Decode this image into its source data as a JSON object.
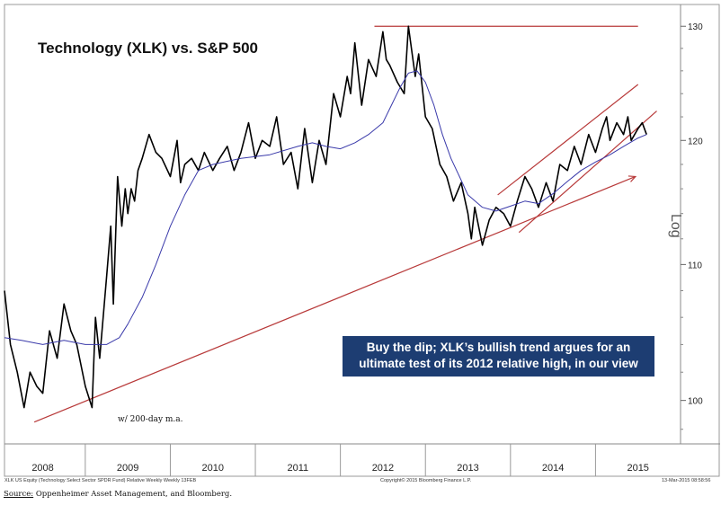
{
  "chart_data": {
    "type": "line",
    "title": "Technology (XLK) vs. S&P 500",
    "y_scale": "log",
    "y_axis_label": "Log",
    "ylim": [
      97,
      132
    ],
    "yticks": [
      100,
      110,
      120,
      130
    ],
    "x_range": [
      2007.55,
      2015.5
    ],
    "x_tick_labels": [
      "2008",
      "2009",
      "2010",
      "2011",
      "2012",
      "2013",
      "2014",
      "2015"
    ],
    "series": [
      {
        "name": "",
        "style": "black",
        "x": [
          2007.55,
          2007.62,
          2007.7,
          2007.78,
          2007.85,
          2007.93,
          2008.0,
          2008.08,
          2008.17,
          2008.25,
          2008.33,
          2008.4,
          2008.5,
          2008.58,
          2008.62,
          2008.67,
          2008.75,
          2008.8,
          2008.83,
          2008.88,
          2008.93,
          2008.97,
          2009.0,
          2009.04,
          2009.08,
          2009.12,
          2009.17,
          2009.25,
          2009.33,
          2009.4,
          2009.5,
          2009.58,
          2009.62,
          2009.67,
          2009.75,
          2009.83,
          2009.9,
          2010.0,
          2010.08,
          2010.17,
          2010.25,
          2010.33,
          2010.42,
          2010.5,
          2010.58,
          2010.67,
          2010.75,
          2010.83,
          2010.92,
          2011.0,
          2011.08,
          2011.17,
          2011.25,
          2011.33,
          2011.42,
          2011.5,
          2011.58,
          2011.62,
          2011.67,
          2011.75,
          2011.83,
          2011.92,
          2012.0,
          2012.04,
          2012.08,
          2012.17,
          2012.25,
          2012.3,
          2012.38,
          2012.42,
          2012.5,
          2012.58,
          2012.67,
          2012.75,
          2012.83,
          2012.92,
          2013.0,
          2013.04,
          2013.08,
          2013.17,
          2013.25,
          2013.33,
          2013.42,
          2013.5,
          2013.58,
          2013.67,
          2013.75,
          2013.83,
          2013.92,
          2014.0,
          2014.08,
          2014.17,
          2014.25,
          2014.33,
          2014.42,
          2014.5,
          2014.58,
          2014.63,
          2014.67,
          2014.75,
          2014.83,
          2014.88,
          2014.92,
          2015.0,
          2015.05,
          2015.1
        ],
        "values": [
          108,
          104,
          102,
          99.5,
          102,
          101,
          100.5,
          105,
          103,
          107,
          105,
          104,
          101,
          99.5,
          106,
          103,
          109,
          113,
          107,
          117,
          113,
          116,
          114,
          116,
          115,
          117.5,
          118.5,
          120.5,
          119,
          118.5,
          117,
          120,
          116.5,
          118,
          118.5,
          117.5,
          119,
          117.5,
          118.5,
          119.5,
          117.5,
          119,
          121.5,
          118.5,
          120,
          119.5,
          122,
          118,
          119,
          116,
          121,
          116.5,
          120,
          118,
          124,
          122,
          125.5,
          124,
          128.5,
          123,
          127,
          125.5,
          129.5,
          127,
          126.5,
          125,
          124,
          130,
          125.5,
          127.5,
          122,
          121,
          118,
          117,
          115,
          116.5,
          114,
          112,
          114.5,
          111.5,
          113.5,
          114.5,
          114,
          113,
          115,
          117,
          116,
          114.5,
          116.5,
          115,
          118,
          117.5,
          119.5,
          118,
          120.5,
          119,
          121,
          122,
          120,
          121.5,
          120.5,
          122,
          120,
          121,
          121.5,
          120.5
        ]
      },
      {
        "name": "",
        "style": "blue",
        "x": [
          2007.55,
          2007.75,
          2008.0,
          2008.25,
          2008.5,
          2008.75,
          2008.9,
          2009.0,
          2009.17,
          2009.33,
          2009.5,
          2009.67,
          2009.83,
          2010.0,
          2010.33,
          2010.67,
          2011.0,
          2011.17,
          2011.33,
          2011.5,
          2011.67,
          2011.83,
          2012.0,
          2012.1,
          2012.2,
          2012.3,
          2012.4,
          2012.5,
          2012.6,
          2012.7,
          2012.8,
          2012.9,
          2013.0,
          2013.17,
          2013.33,
          2013.5,
          2013.67,
          2013.83,
          2014.0,
          2014.17,
          2014.33,
          2014.5,
          2014.67,
          2014.83,
          2015.0,
          2015.1
        ],
        "values": [
          104.5,
          104.3,
          104.0,
          104.3,
          104.0,
          104.0,
          104.5,
          105.5,
          107.5,
          110,
          113,
          115.5,
          117.5,
          118,
          118.5,
          118.8,
          119.5,
          119.8,
          119.5,
          119.3,
          119.8,
          120.5,
          121.5,
          123,
          124.5,
          125.8,
          126,
          125,
          123,
          120.5,
          118.5,
          117,
          115.5,
          114.5,
          114.2,
          114.6,
          115.0,
          114.8,
          115.6,
          116.6,
          117.5,
          118.2,
          118.8,
          119.5,
          120.2,
          120.5
        ]
      }
    ],
    "trend_lines": [
      {
        "x": [
          2007.9,
          2014.97
        ],
        "y": [
          98.5,
          117
        ]
      },
      {
        "x": [
          2011.9,
          2015.0
        ],
        "y": [
          130,
          130
        ]
      },
      {
        "x": [
          2013.35,
          2015.0
        ],
        "y": [
          115.5,
          124.8
        ]
      },
      {
        "x": [
          2013.6,
          2015.22
        ],
        "y": [
          112.5,
          122.5
        ]
      }
    ],
    "annotations": [
      "Buy the dip; XLK’s bullish trend argues for an",
      "ultimate test of its 2012 relative high, in our view",
      "w/ 200-day m.a."
    ],
    "footer_left": "XLK US Equity (Technology Select Sector SPDR Fund) Relative Weekly  Weekly 13FEB",
    "footer_mid": "Copyright© 2015 Bloomberg Finance L.P.",
    "footer_right": "13-Mar-2015 08:58:56",
    "source_label": "Source:",
    "source_text": "Oppenheimer Asset Management, and Bloomberg.",
    "colors": {
      "price_line": "#000000",
      "moving_average": "#3a3aaa",
      "trend_lines": "#b83a3a",
      "annotation_box": "#1d3d72",
      "annotation_text": "#ffffff"
    }
  }
}
